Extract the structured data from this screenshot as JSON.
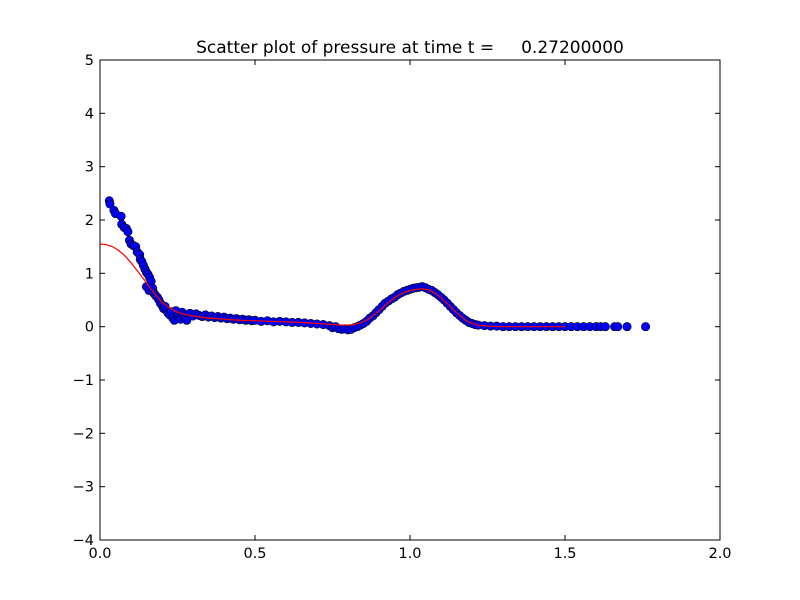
{
  "chart_data": {
    "type": "scatter",
    "title": "Scatter plot of pressure at time t =     0.27200000",
    "xlabel": "",
    "ylabel": "",
    "xlim": [
      0.0,
      2.0
    ],
    "ylim": [
      -4,
      5
    ],
    "x_ticks": [
      "0.0",
      "0.5",
      "1.0",
      "1.5",
      "2.0"
    ],
    "y_ticks": [
      "−4",
      "−3",
      "−2",
      "−1",
      "0",
      "1",
      "2",
      "3",
      "4",
      "5"
    ],
    "grid": false,
    "legend": "none",
    "series": [
      {
        "kind": "scatter",
        "color": "#0000ff",
        "edge_color": "#000000",
        "points": [
          [
            0.03,
            2.36
          ],
          [
            0.032,
            2.3
          ],
          [
            0.045,
            2.18
          ],
          [
            0.05,
            2.12
          ],
          [
            0.068,
            2.07
          ],
          [
            0.07,
            1.92
          ],
          [
            0.078,
            1.86
          ],
          [
            0.085,
            1.84
          ],
          [
            0.09,
            1.78
          ],
          [
            0.095,
            1.62
          ],
          [
            0.1,
            1.55
          ],
          [
            0.108,
            1.52
          ],
          [
            0.115,
            1.5
          ],
          [
            0.12,
            1.4
          ],
          [
            0.128,
            1.35
          ],
          [
            0.13,
            1.26
          ],
          [
            0.135,
            1.22
          ],
          [
            0.14,
            1.15
          ],
          [
            0.145,
            1.08
          ],
          [
            0.15,
            1.02
          ],
          [
            0.155,
            0.98
          ],
          [
            0.16,
            0.92
          ],
          [
            0.165,
            0.85
          ],
          [
            0.15,
            0.75
          ],
          [
            0.158,
            0.68
          ],
          [
            0.17,
            0.72
          ],
          [
            0.175,
            0.62
          ],
          [
            0.18,
            0.58
          ],
          [
            0.185,
            0.55
          ],
          [
            0.19,
            0.5
          ],
          [
            0.195,
            0.44
          ],
          [
            0.2,
            0.4
          ],
          [
            0.205,
            0.34
          ],
          [
            0.21,
            0.38
          ],
          [
            0.215,
            0.3
          ],
          [
            0.22,
            0.25
          ],
          [
            0.225,
            0.22
          ],
          [
            0.23,
            0.28
          ],
          [
            0.235,
            0.16
          ],
          [
            0.24,
            0.12
          ],
          [
            0.245,
            0.3
          ],
          [
            0.25,
            0.2
          ],
          [
            0.255,
            0.18
          ],
          [
            0.26,
            0.14
          ],
          [
            0.265,
            0.27
          ],
          [
            0.27,
            0.22
          ],
          [
            0.275,
            0.15
          ],
          [
            0.28,
            0.12
          ],
          [
            0.29,
            0.25
          ],
          [
            0.3,
            0.2
          ],
          [
            0.31,
            0.24
          ],
          [
            0.32,
            0.21
          ],
          [
            0.33,
            0.19
          ],
          [
            0.34,
            0.22
          ],
          [
            0.35,
            0.18
          ],
          [
            0.36,
            0.2
          ],
          [
            0.37,
            0.17
          ],
          [
            0.38,
            0.19
          ],
          [
            0.39,
            0.16
          ],
          [
            0.4,
            0.18
          ],
          [
            0.41,
            0.15
          ],
          [
            0.42,
            0.16
          ],
          [
            0.43,
            0.14
          ],
          [
            0.44,
            0.15
          ],
          [
            0.45,
            0.13
          ],
          [
            0.46,
            0.14
          ],
          [
            0.47,
            0.12
          ],
          [
            0.48,
            0.13
          ],
          [
            0.49,
            0.11
          ],
          [
            0.5,
            0.12
          ],
          [
            0.52,
            0.1
          ],
          [
            0.54,
            0.11
          ],
          [
            0.56,
            0.09
          ],
          [
            0.58,
            0.1
          ],
          [
            0.6,
            0.09
          ],
          [
            0.62,
            0.08
          ],
          [
            0.64,
            0.08
          ],
          [
            0.66,
            0.07
          ],
          [
            0.68,
            0.06
          ],
          [
            0.7,
            0.05
          ],
          [
            0.72,
            0.04
          ],
          [
            0.74,
            0.02
          ],
          [
            0.75,
            -0.02
          ],
          [
            0.76,
            0.0
          ],
          [
            0.77,
            -0.04
          ],
          [
            0.78,
            -0.05
          ],
          [
            0.79,
            -0.04
          ],
          [
            0.8,
            -0.06
          ],
          [
            0.81,
            -0.05
          ],
          [
            0.82,
            -0.02
          ],
          [
            0.83,
            0.0
          ],
          [
            0.84,
            0.03
          ],
          [
            0.85,
            0.06
          ],
          [
            0.86,
            0.1
          ],
          [
            0.87,
            0.16
          ],
          [
            0.88,
            0.2
          ],
          [
            0.89,
            0.26
          ],
          [
            0.9,
            0.32
          ],
          [
            0.91,
            0.38
          ],
          [
            0.92,
            0.44
          ],
          [
            0.93,
            0.48
          ],
          [
            0.94,
            0.52
          ],
          [
            0.95,
            0.55
          ],
          [
            0.96,
            0.6
          ],
          [
            0.97,
            0.63
          ],
          [
            0.98,
            0.66
          ],
          [
            0.99,
            0.68
          ],
          [
            1.0,
            0.7
          ],
          [
            1.01,
            0.72
          ],
          [
            1.02,
            0.73
          ],
          [
            1.03,
            0.74
          ],
          [
            1.04,
            0.75
          ],
          [
            1.05,
            0.73
          ],
          [
            1.06,
            0.7
          ],
          [
            1.07,
            0.68
          ],
          [
            1.08,
            0.64
          ],
          [
            1.09,
            0.6
          ],
          [
            1.1,
            0.55
          ],
          [
            1.11,
            0.5
          ],
          [
            1.12,
            0.44
          ],
          [
            1.13,
            0.38
          ],
          [
            1.14,
            0.32
          ],
          [
            1.15,
            0.26
          ],
          [
            1.16,
            0.21
          ],
          [
            1.17,
            0.16
          ],
          [
            1.18,
            0.12
          ],
          [
            1.19,
            0.08
          ],
          [
            1.2,
            0.06
          ],
          [
            1.21,
            0.04
          ],
          [
            1.22,
            0.03
          ],
          [
            1.24,
            0.02
          ],
          [
            1.26,
            0.01
          ],
          [
            1.28,
            0.01
          ],
          [
            1.3,
            0.0
          ],
          [
            1.32,
            0.0
          ],
          [
            1.34,
            0.0
          ],
          [
            1.36,
            0.0
          ],
          [
            1.38,
            0.0
          ],
          [
            1.4,
            0.0
          ],
          [
            1.42,
            0.0
          ],
          [
            1.44,
            0.0
          ],
          [
            1.46,
            0.0
          ],
          [
            1.48,
            0.0
          ],
          [
            1.5,
            0.0
          ],
          [
            1.52,
            0.0
          ],
          [
            1.54,
            0.0
          ],
          [
            1.56,
            0.0
          ],
          [
            1.58,
            0.0
          ],
          [
            1.6,
            0.0
          ],
          [
            1.615,
            0.0
          ],
          [
            1.63,
            0.0
          ],
          [
            1.66,
            0.0
          ],
          [
            1.67,
            0.0
          ],
          [
            1.7,
            0.0
          ],
          [
            1.76,
            0.0
          ]
        ]
      },
      {
        "kind": "line",
        "color": "#ff0000",
        "points": [
          [
            0.0,
            1.55
          ],
          [
            0.02,
            1.54
          ],
          [
            0.04,
            1.5
          ],
          [
            0.06,
            1.43
          ],
          [
            0.08,
            1.33
          ],
          [
            0.1,
            1.2
          ],
          [
            0.12,
            1.05
          ],
          [
            0.14,
            0.9
          ],
          [
            0.16,
            0.74
          ],
          [
            0.18,
            0.59
          ],
          [
            0.2,
            0.46
          ],
          [
            0.22,
            0.37
          ],
          [
            0.24,
            0.3
          ],
          [
            0.26,
            0.25
          ],
          [
            0.28,
            0.22
          ],
          [
            0.3,
            0.2
          ],
          [
            0.35,
            0.16
          ],
          [
            0.4,
            0.14
          ],
          [
            0.45,
            0.12
          ],
          [
            0.5,
            0.11
          ],
          [
            0.55,
            0.1
          ],
          [
            0.6,
            0.09
          ],
          [
            0.65,
            0.08
          ],
          [
            0.7,
            0.06
          ],
          [
            0.75,
            0.04
          ],
          [
            0.78,
            0.03
          ],
          [
            0.8,
            0.03
          ],
          [
            0.82,
            0.04
          ],
          [
            0.84,
            0.07
          ],
          [
            0.86,
            0.12
          ],
          [
            0.88,
            0.2
          ],
          [
            0.9,
            0.3
          ],
          [
            0.92,
            0.4
          ],
          [
            0.94,
            0.5
          ],
          [
            0.96,
            0.58
          ],
          [
            0.98,
            0.64
          ],
          [
            1.0,
            0.68
          ],
          [
            1.02,
            0.7
          ],
          [
            1.04,
            0.71
          ],
          [
            1.06,
            0.69
          ],
          [
            1.08,
            0.63
          ],
          [
            1.1,
            0.54
          ],
          [
            1.12,
            0.43
          ],
          [
            1.14,
            0.32
          ],
          [
            1.16,
            0.21
          ],
          [
            1.18,
            0.12
          ],
          [
            1.2,
            0.06
          ],
          [
            1.22,
            0.03
          ],
          [
            1.25,
            0.01
          ],
          [
            1.3,
            0.0
          ],
          [
            1.4,
            0.0
          ],
          [
            1.5,
            0.0
          ]
        ]
      }
    ]
  }
}
